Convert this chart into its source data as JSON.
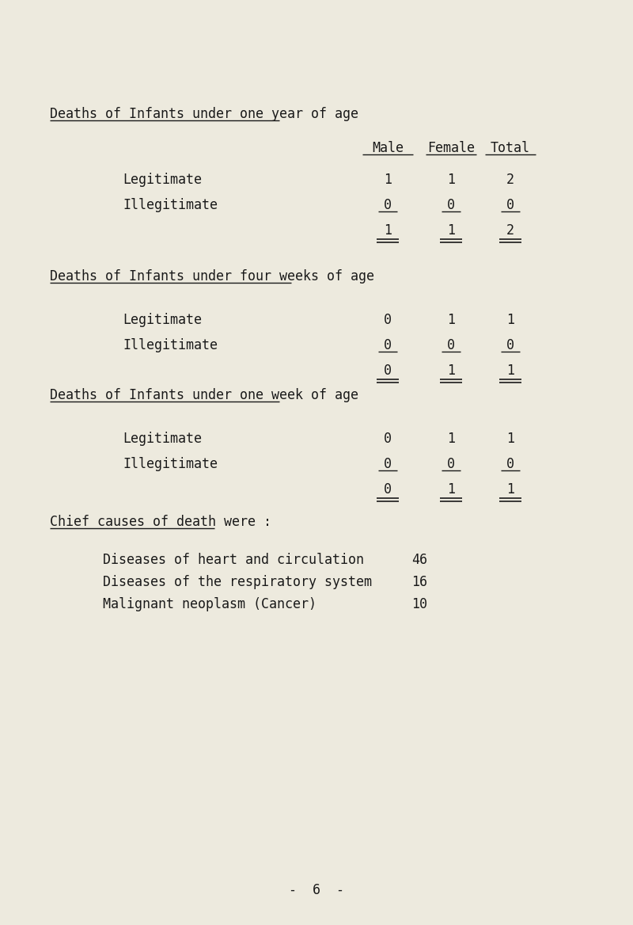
{
  "bg_color": "#edeade",
  "text_color": "#1a1a1a",
  "page_number": "6",
  "section1_title": "Deaths of Infants under one year of age",
  "section2_title": "Deaths of Infants under four weeks of age",
  "section3_title": "Deaths of Infants under one week of age",
  "section4_title": "Chief causes of death were :",
  "col_headers": [
    "Male",
    "Female",
    "Total"
  ],
  "section1_rows": [
    {
      "label": "Legitimate",
      "male": "1",
      "female": "1",
      "total": "2",
      "underline": false
    },
    {
      "label": "Illegitimate",
      "male": "0",
      "female": "0",
      "total": "0",
      "underline": true
    },
    {
      "label": "",
      "male": "1",
      "female": "1",
      "total": "2",
      "underline": false
    }
  ],
  "section2_rows": [
    {
      "label": "Legitimate",
      "male": "0",
      "female": "1",
      "total": "1",
      "underline": false
    },
    {
      "label": "Illegitimate",
      "male": "0",
      "female": "0",
      "total": "0",
      "underline": true
    },
    {
      "label": "",
      "male": "0",
      "female": "1",
      "total": "1",
      "underline": false
    }
  ],
  "section3_rows": [
    {
      "label": "Legitimate",
      "male": "0",
      "female": "1",
      "total": "1",
      "underline": false
    },
    {
      "label": "Illegitimate",
      "male": "0",
      "female": "0",
      "total": "0",
      "underline": true
    },
    {
      "label": "",
      "male": "0",
      "female": "1",
      "total": "1",
      "underline": false
    }
  ],
  "causes": [
    {
      "label": "Diseases of heart and circulation",
      "value": "46"
    },
    {
      "label": "Diseases of the respiratory system",
      "value": "16"
    },
    {
      "label": "Malignant neoplasm (Cancer)",
      "value": "10"
    }
  ]
}
